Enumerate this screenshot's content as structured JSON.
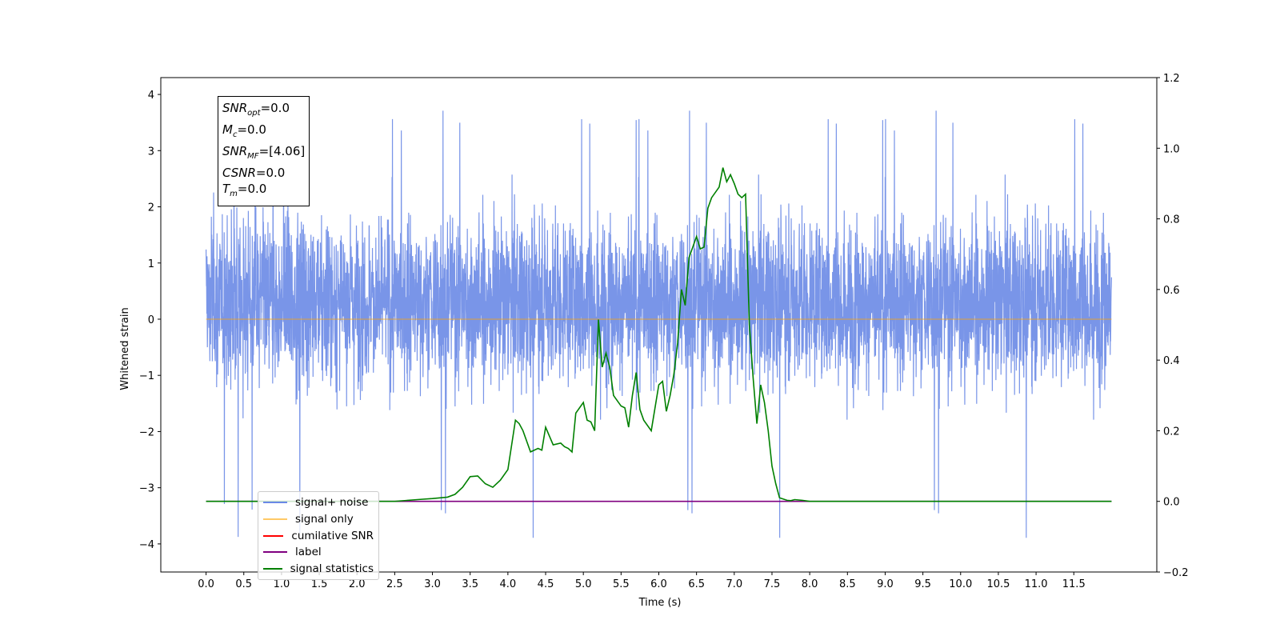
{
  "chart_data": {
    "type": "line",
    "xlabel": "Time (s)",
    "ylabel": "Whitened strain",
    "xlim": [
      -0.6,
      12.6
    ],
    "ylim": [
      -4.5,
      4.3
    ],
    "ylim_right": [
      -0.2,
      1.2
    ],
    "x_ticks": [
      "0.0",
      "0.5",
      "1.0",
      "1.5",
      "2.0",
      "2.5",
      "3.0",
      "3.5",
      "4.0",
      "4.5",
      "5.0",
      "5.5",
      "6.0",
      "6.5",
      "7.0",
      "7.5",
      "8.0",
      "8.5",
      "9.0",
      "9.5",
      "10.0",
      "10.5",
      "11.0",
      "11.5"
    ],
    "y_ticks": [
      "4",
      "3",
      "2",
      "1",
      "0",
      "−1",
      "−2",
      "−3",
      "−4"
    ],
    "y_ticks_right": [
      "1.2",
      "1.0",
      "0.8",
      "0.6",
      "0.4",
      "0.2",
      "0.0",
      "−0.2"
    ],
    "grid": false,
    "legend_position": "lower-left",
    "annotation": {
      "snr_opt": "=0.0",
      "mc": "=0.0",
      "snr_mf": "=[4.06]",
      "csnr": "=0.0",
      "tm": "=0.0"
    },
    "series": [
      {
        "name": "signal+ noise",
        "color": "#6a89e6",
        "axis": "left",
        "description_values": {
          "x_start": 0.0,
          "x_end": 12.0,
          "typical_band": [
            -2.0,
            2.5
          ],
          "max_peak": 3.9,
          "min_trough": -4.1
        }
      },
      {
        "name": "signal only",
        "color": "#ffa500",
        "axis": "left",
        "x": [
          0.0,
          12.0
        ],
        "y": [
          0.0,
          0.0
        ]
      },
      {
        "name": "cumilative SNR",
        "color": "#ff0000",
        "axis": "right",
        "x": [],
        "y": []
      },
      {
        "name": "label",
        "color": "#800080",
        "axis": "right",
        "x": [
          0.0,
          12.0
        ],
        "y": [
          0.0,
          0.0
        ]
      },
      {
        "name": "signal statistics",
        "color": "#008000",
        "axis": "right",
        "x": [
          0.0,
          2.5,
          2.8,
          3.0,
          3.2,
          3.3,
          3.4,
          3.5,
          3.6,
          3.7,
          3.8,
          3.9,
          4.0,
          4.1,
          4.15,
          4.2,
          4.3,
          4.4,
          4.45,
          4.5,
          4.6,
          4.7,
          4.75,
          4.8,
          4.85,
          4.9,
          5.0,
          5.05,
          5.1,
          5.15,
          5.2,
          5.25,
          5.3,
          5.35,
          5.4,
          5.5,
          5.55,
          5.6,
          5.65,
          5.7,
          5.75,
          5.8,
          5.9,
          6.0,
          6.05,
          6.1,
          6.15,
          6.2,
          6.25,
          6.3,
          6.35,
          6.4,
          6.5,
          6.55,
          6.6,
          6.65,
          6.7,
          6.8,
          6.85,
          6.9,
          6.95,
          7.0,
          7.05,
          7.1,
          7.15,
          7.2,
          7.25,
          7.3,
          7.35,
          7.4,
          7.45,
          7.5,
          7.55,
          7.6,
          7.7,
          7.75,
          7.8,
          7.9,
          8.0,
          8.1,
          8.3,
          8.6,
          12.0
        ],
        "y": [
          0.0,
          0.0,
          0.005,
          0.008,
          0.012,
          0.02,
          0.04,
          0.07,
          0.072,
          0.05,
          0.04,
          0.06,
          0.09,
          0.23,
          0.22,
          0.2,
          0.14,
          0.15,
          0.145,
          0.21,
          0.16,
          0.165,
          0.155,
          0.15,
          0.14,
          0.25,
          0.28,
          0.23,
          0.225,
          0.2,
          0.515,
          0.38,
          0.42,
          0.38,
          0.3,
          0.27,
          0.265,
          0.21,
          0.3,
          0.365,
          0.26,
          0.23,
          0.2,
          0.33,
          0.34,
          0.255,
          0.3,
          0.36,
          0.45,
          0.6,
          0.555,
          0.69,
          0.75,
          0.715,
          0.72,
          0.83,
          0.86,
          0.89,
          0.945,
          0.905,
          0.925,
          0.9,
          0.87,
          0.86,
          0.87,
          0.5,
          0.35,
          0.22,
          0.33,
          0.28,
          0.2,
          0.1,
          0.05,
          0.01,
          0.003,
          0.002,
          0.005,
          0.003,
          0.0,
          0.0,
          0.0,
          0.0,
          0.0
        ]
      }
    ]
  }
}
